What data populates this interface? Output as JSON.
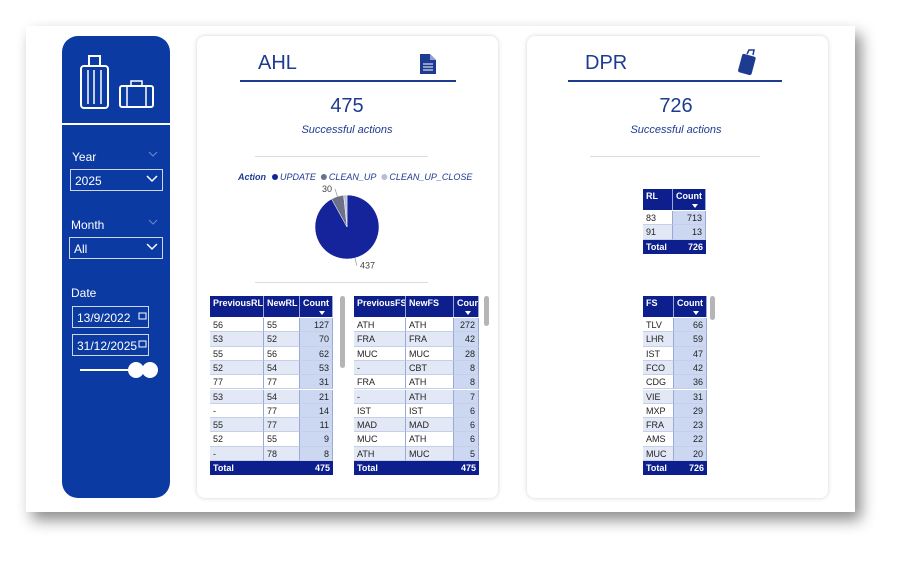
{
  "sidebar": {
    "year": {
      "label": "Year",
      "value": "2025"
    },
    "month": {
      "label": "Month",
      "value": "All"
    },
    "date": {
      "label": "Date",
      "start": "13/9/2022",
      "end": "31/12/2025"
    }
  },
  "ahl": {
    "title": "AHL",
    "total": 475,
    "subtitle": "Successful actions",
    "chart": {
      "type": "pie",
      "legend_title": "Action",
      "categories": [
        "UPDATE",
        "CLEAN_UP",
        "CLEAN_UP_CLOSE"
      ],
      "values": [
        437,
        30,
        8
      ],
      "colors": [
        "#15249a",
        "#6c7089",
        "#b9bed8"
      ]
    },
    "table_rl": {
      "columns": [
        "PreviousRL",
        "NewRL",
        "Count"
      ],
      "rows": [
        [
          56,
          55,
          127
        ],
        [
          53,
          52,
          70
        ],
        [
          55,
          56,
          62
        ],
        [
          52,
          54,
          53
        ],
        [
          77,
          77,
          31
        ],
        [
          53,
          54,
          21
        ],
        [
          "-",
          77,
          14
        ],
        [
          55,
          77,
          11
        ],
        [
          52,
          55,
          9
        ],
        [
          "-",
          78,
          8
        ]
      ],
      "total_label": "Total",
      "total": 475
    },
    "table_fs": {
      "columns": [
        "PreviousFS",
        "NewFS",
        "Count"
      ],
      "rows": [
        [
          "ATH",
          "ATH",
          272
        ],
        [
          "FRA",
          "FRA",
          42
        ],
        [
          "MUC",
          "MUC",
          28
        ],
        [
          "-",
          "CBT",
          8
        ],
        [
          "FRA",
          "ATH",
          8
        ],
        [
          "-",
          "ATH",
          7
        ],
        [
          "IST",
          "IST",
          6
        ],
        [
          "MAD",
          "MAD",
          6
        ],
        [
          "MUC",
          "ATH",
          6
        ],
        [
          "ATH",
          "MUC",
          5
        ]
      ],
      "total_label": "Total",
      "total": 475
    }
  },
  "dpr": {
    "title": "DPR",
    "total": 726,
    "subtitle": "Successful actions",
    "table_rl": {
      "columns": [
        "RL",
        "Count"
      ],
      "rows": [
        [
          83,
          713
        ],
        [
          91,
          13
        ]
      ],
      "total_label": "Total",
      "total": 726
    },
    "table_fs": {
      "columns": [
        "FS",
        "Count"
      ],
      "rows": [
        [
          "TLV",
          66
        ],
        [
          "LHR",
          59
        ],
        [
          "IST",
          47
        ],
        [
          "FCO",
          42
        ],
        [
          "CDG",
          36
        ],
        [
          "VIE",
          31
        ],
        [
          "MXP",
          29
        ],
        [
          "FRA",
          23
        ],
        [
          "AMS",
          22
        ],
        [
          "MUC",
          20
        ]
      ],
      "total_label": "Total",
      "total": 726
    }
  }
}
